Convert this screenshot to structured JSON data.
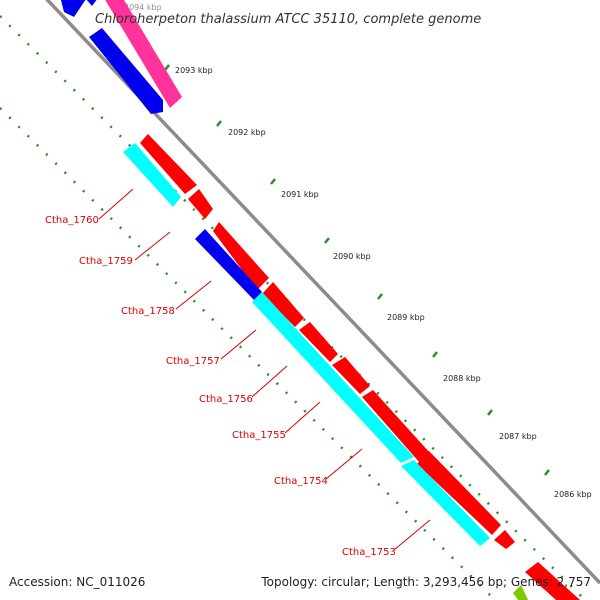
{
  "title": "Chloroherpeton thalassium ATCC 35110, complete genome",
  "footer": {
    "accession": "Accession: NC_011026",
    "summary": "Topology: circular; Length: 3,293,456 bp; Genes: 2,757"
  },
  "colors": {
    "backbone": "#8c8c8c",
    "tick": "#2f8a2f",
    "label_line": "#dd0000",
    "forward_cds": "#ff0000",
    "reverse_cds": "#0000ee",
    "reverse_cds_alt": "#00ffff",
    "rna": "#ff3399",
    "other": "#7ec800"
  },
  "ticks": [
    {
      "kbp": 2094,
      "label": "2094 kbp"
    },
    {
      "kbp": 2093,
      "label": "2093 kbp"
    },
    {
      "kbp": 2092,
      "label": "2092 kbp"
    },
    {
      "kbp": 2091,
      "label": "2091 kbp"
    },
    {
      "kbp": 2090,
      "label": "2090 kbp"
    },
    {
      "kbp": 2089,
      "label": "2089 kbp"
    },
    {
      "kbp": 2088,
      "label": "2088 kbp"
    },
    {
      "kbp": 2087,
      "label": "2087 kbp"
    },
    {
      "kbp": 2086,
      "label": "2086 kbp"
    }
  ],
  "gene_labels": [
    {
      "label": "Ctha_1760"
    },
    {
      "label": "Ctha_1759"
    },
    {
      "label": "Ctha_1758"
    },
    {
      "label": "Ctha_1757"
    },
    {
      "label": "Ctha_1756"
    },
    {
      "label": "Ctha_1755"
    },
    {
      "label": "Ctha_1754"
    },
    {
      "label": "Ctha_1753"
    }
  ]
}
